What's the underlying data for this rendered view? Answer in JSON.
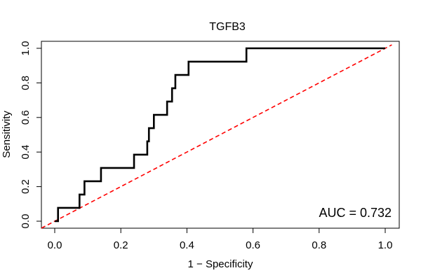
{
  "chart_data": {
    "type": "line",
    "title": "TGFB3",
    "xlabel": "1 − Specificity",
    "ylabel": "Sensitivity",
    "xlim": [
      0,
      1
    ],
    "ylim": [
      0,
      1
    ],
    "x_ticks": [
      0.0,
      0.2,
      0.4,
      0.6,
      0.8,
      1.0
    ],
    "x_tick_labels": [
      "0.0",
      "0.2",
      "0.4",
      "0.6",
      "0.8",
      "1.0"
    ],
    "y_ticks": [
      0.0,
      0.2,
      0.4,
      0.6,
      0.8,
      1.0
    ],
    "y_tick_labels": [
      "0.0",
      "0.2",
      "0.4",
      "0.6",
      "0.8",
      "1.0"
    ],
    "grid": false,
    "annotation": "AUC = 0.732",
    "series": [
      {
        "name": "ROC curve",
        "color": "#000000",
        "style": "solid",
        "x": [
          0.0,
          0.01,
          0.01,
          0.075,
          0.075,
          0.09,
          0.09,
          0.14,
          0.14,
          0.24,
          0.24,
          0.28,
          0.28,
          0.285,
          0.285,
          0.3,
          0.3,
          0.34,
          0.34,
          0.355,
          0.355,
          0.365,
          0.365,
          0.405,
          0.405,
          0.58,
          0.58,
          1.0
        ],
        "y": [
          0.0,
          0.0,
          0.077,
          0.077,
          0.154,
          0.154,
          0.231,
          0.231,
          0.308,
          0.308,
          0.385,
          0.385,
          0.462,
          0.462,
          0.538,
          0.538,
          0.615,
          0.615,
          0.692,
          0.692,
          0.769,
          0.769,
          0.846,
          0.846,
          0.923,
          0.923,
          1.0,
          1.0
        ]
      },
      {
        "name": "reference diagonal",
        "color": "#ff0000",
        "style": "dashed",
        "x": [
          0,
          1
        ],
        "y": [
          0,
          1
        ]
      }
    ]
  }
}
